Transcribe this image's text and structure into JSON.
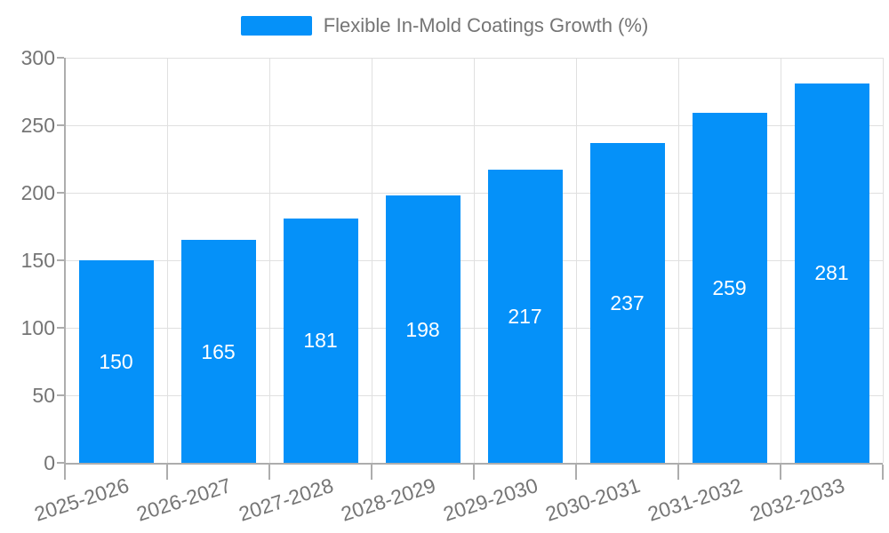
{
  "chart_data": {
    "type": "bar",
    "title": "",
    "legend": {
      "label": "Flexible In-Mold Coatings Growth (%)",
      "position": "top-center"
    },
    "categories": [
      "2025-2026",
      "2026-2027",
      "2027-2028",
      "2028-2029",
      "2029-2030",
      "2030-2031",
      "2031-2032",
      "2032-2033"
    ],
    "series": [
      {
        "name": "Flexible In-Mold Coatings Growth (%)",
        "values": [
          150,
          165,
          181,
          198,
          217,
          237,
          259,
          281
        ]
      }
    ],
    "xlabel": "",
    "ylabel": "",
    "ylim": [
      0,
      300
    ],
    "yticks": [
      0,
      50,
      100,
      150,
      200,
      250,
      300
    ],
    "grid": true,
    "value_labels_shown": true
  },
  "colors": {
    "bar": "#0591f9",
    "grid": "#e0e0e0",
    "axis": "#adadad",
    "tick_text": "#757575",
    "value_label_text": "#ffffff",
    "background": "#ffffff"
  }
}
